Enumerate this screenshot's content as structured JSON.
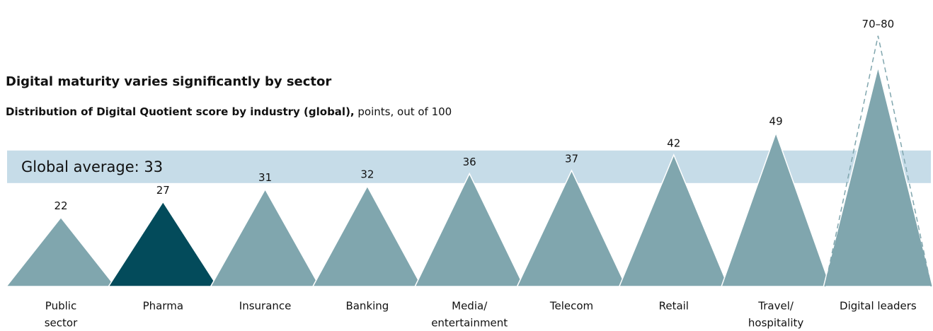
{
  "chart_data": {
    "type": "triangle",
    "title": "Digital maturity varies significantly by sector",
    "subtitle_bold": "Distribution of Digital Quotient score by industry (global),",
    "subtitle": "points, out of 100",
    "categories": [
      [
        "Public",
        "sector"
      ],
      [
        "Pharma"
      ],
      [
        "Insurance"
      ],
      [
        "Banking"
      ],
      [
        "Media/",
        "entertainment"
      ],
      [
        "Telecom"
      ],
      [
        "Retail"
      ],
      [
        "Travel/",
        "hospitality"
      ],
      [
        "Digital leaders"
      ]
    ],
    "values": [
      22,
      27,
      31,
      32,
      36,
      37,
      42,
      49,
      70
    ],
    "value_labels": [
      "22",
      "27",
      "31",
      "32",
      "36",
      "37",
      "42",
      "49",
      "70–80"
    ],
    "range_high": [
      null,
      null,
      null,
      null,
      null,
      null,
      null,
      null,
      80
    ],
    "colors": [
      "#80a6ae",
      "#034b5b",
      "#80a6ae",
      "#80a6ae",
      "#80a6ae",
      "#80a6ae",
      "#80a6ae",
      "#80a6ae",
      "#80a6ae"
    ],
    "average": 33,
    "average_label": "Global average: 33",
    "average_color": "#c6dce8"
  }
}
